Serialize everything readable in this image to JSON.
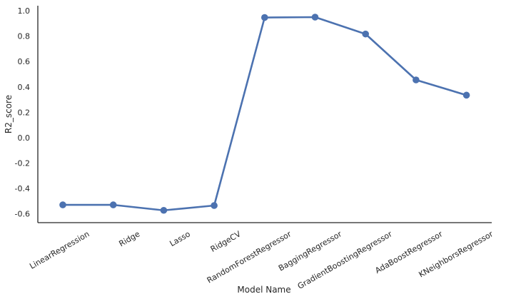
{
  "chart_data": {
    "type": "line",
    "categories": [
      "LinearRegression",
      "Ridge",
      "Lasso",
      "RidgeCV",
      "RandomForestRegressor",
      "BaggingRegressor",
      "GradientBoostingRegressor",
      "AdaBoostRegressor",
      "KNeighborsRegressor"
    ],
    "values": [
      -0.53,
      -0.53,
      -0.573,
      -0.535,
      0.947,
      0.95,
      0.817,
      0.455,
      0.335
    ],
    "title": "",
    "xlabel": "Model Name",
    "ylabel": "R2_score",
    "ylim": [
      -0.67,
      1.04
    ],
    "yticks": [
      -0.6,
      -0.4,
      -0.2,
      0.0,
      0.2,
      0.4,
      0.6,
      0.8,
      1.0
    ],
    "ytick_labels": [
      "-0.6",
      "-0.4",
      "-0.2",
      "0.0",
      "0.2",
      "0.4",
      "0.6",
      "0.8",
      "1.0"
    ],
    "grid": false,
    "line_color": "#4c72b0",
    "axis_color": "#262626"
  }
}
